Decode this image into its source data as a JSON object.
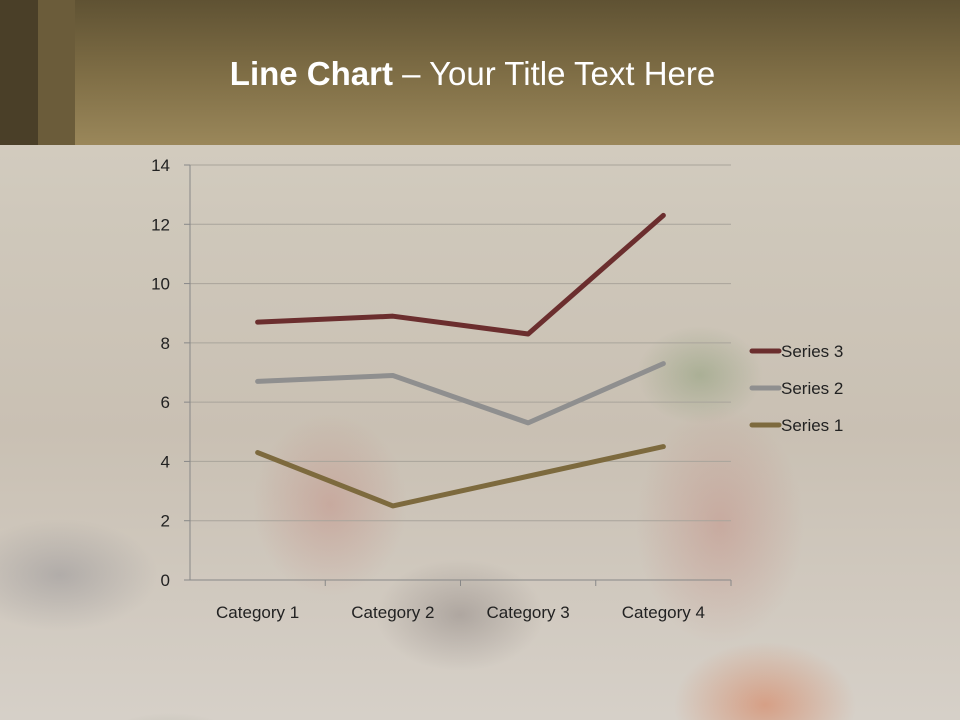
{
  "slide": {
    "title_bold": "Line Chart",
    "title_rest": " – Your Title Text Here"
  },
  "chart_data": {
    "type": "line",
    "stacked": true,
    "categories": [
      "Category 1",
      "Category 2",
      "Category 3",
      "Category 4"
    ],
    "series": [
      {
        "name": "Series 1",
        "values": [
          4.3,
          2.5,
          3.5,
          4.5
        ],
        "color": "#7d6a3e"
      },
      {
        "name": "Series 2",
        "values": [
          2.4,
          4.4,
          1.8,
          2.8
        ],
        "color": "#8f8f8f"
      },
      {
        "name": "Series 3",
        "values": [
          2,
          2,
          3,
          5
        ],
        "color": "#6b2e2e"
      }
    ],
    "ylim": [
      0,
      14
    ],
    "yticks": [
      "0",
      "2",
      "4",
      "6",
      "8",
      "10",
      "12",
      "14"
    ],
    "grid": true,
    "legend": "right"
  }
}
